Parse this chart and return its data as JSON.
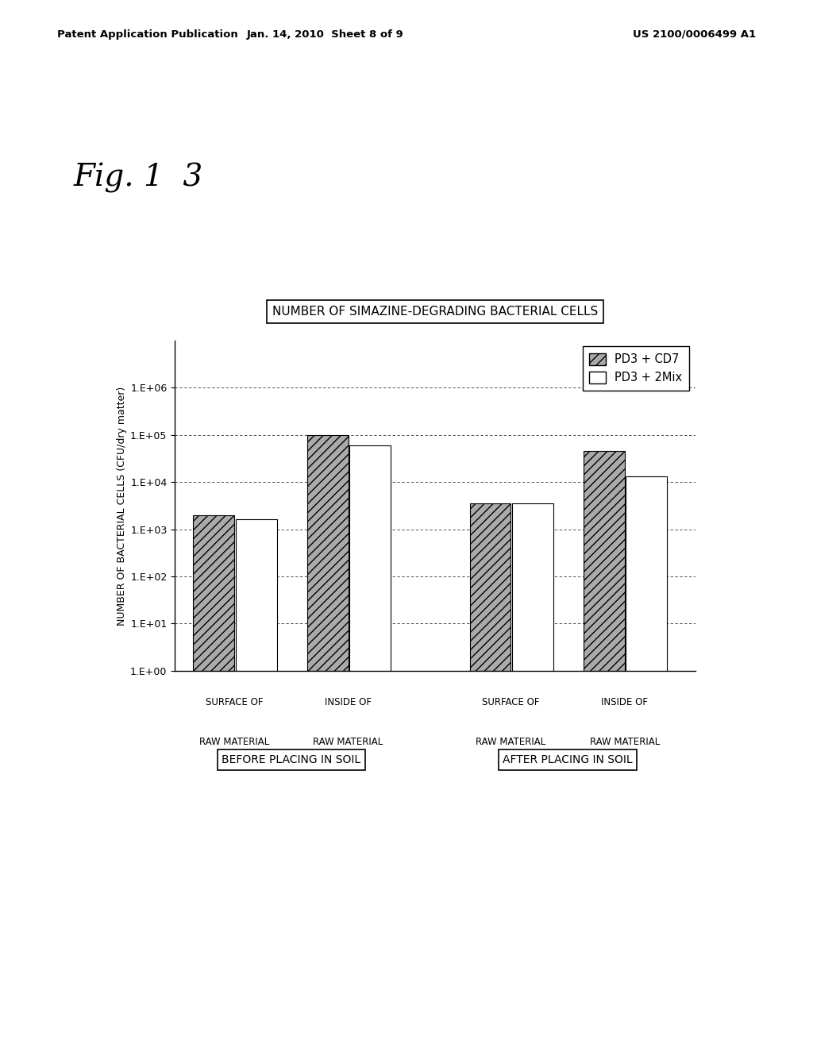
{
  "title": "NUMBER OF SIMAZINE-DEGRADING BACTERIAL CELLS",
  "ylabel": "NUMBER OF BACTERIAL CELLS (CFU/dry matter)",
  "fig_label": "Fig. 1  3",
  "header_left": "Patent Application Publication",
  "header_mid": "Jan. 14, 2010  Sheet 8 of 9",
  "header_right": "US 2100/0006499 A1",
  "groups": [
    {
      "label_line1": "SURFACE OF",
      "label_line2": "RAW MATERIAL",
      "pd3_cd7": 2000,
      "pd3_2mix": 1600
    },
    {
      "label_line1": "INSIDE OF",
      "label_line2": "RAW MATERIAL",
      "pd3_cd7": 100000,
      "pd3_2mix": 60000
    },
    {
      "label_line1": "SURFACE OF",
      "label_line2": "RAW MATERIAL",
      "pd3_cd7": 3500,
      "pd3_2mix": 3500
    },
    {
      "label_line1": "INSIDE OF",
      "label_line2": "RAW MATERIAL",
      "pd3_cd7": 45000,
      "pd3_2mix": 13000
    }
  ],
  "legend_labels": [
    "PD3 + CD7",
    "PD3 + 2Mix"
  ],
  "bar_color_pd3_cd7": "#aaaaaa",
  "bar_color_pd3_2mix": "#ffffff",
  "bar_hatch_pd3_cd7": "///",
  "bar_hatch_pd3_2mix": "",
  "bar_edgecolor": "#000000",
  "ylim_min": 1,
  "ylim_max": 10000000.0,
  "background_color": "#ffffff",
  "section_labels": [
    "BEFORE PLACING IN SOIL",
    "AFTER PLACING IN SOIL"
  ],
  "ytick_labels": [
    "1.E+00",
    "1.E+01",
    "1.E+02",
    "1.E+03",
    "1.E+04",
    "1.E+05",
    "1.E+06"
  ],
  "ytick_values": [
    1,
    10,
    100,
    1000,
    10000,
    100000,
    1000000
  ],
  "group_centers": [
    0.5,
    1.55,
    3.05,
    4.1
  ],
  "bar_width": 0.38,
  "xlim": [
    -0.05,
    4.75
  ]
}
